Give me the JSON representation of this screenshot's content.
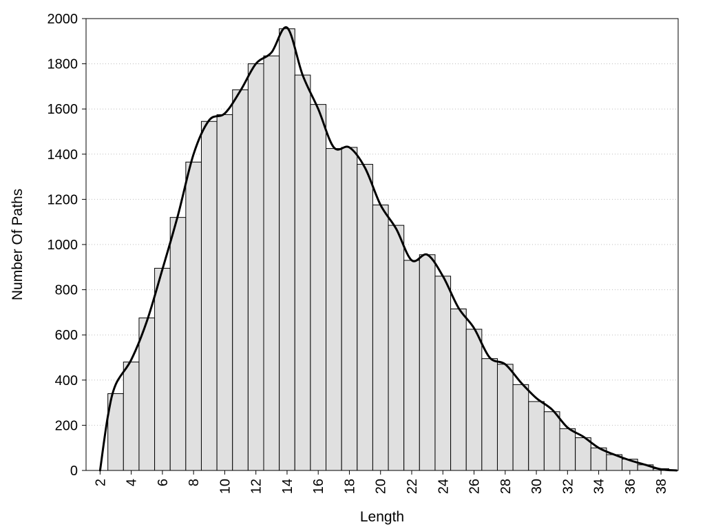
{
  "chart_data": {
    "type": "bar",
    "xlabel": "Length",
    "ylabel": "Number Of Paths",
    "xlim": [
      1.1,
      39.1
    ],
    "ylim": [
      0,
      2000
    ],
    "x_ticks": [
      2,
      4,
      6,
      8,
      10,
      12,
      14,
      16,
      18,
      20,
      22,
      24,
      26,
      28,
      30,
      32,
      34,
      36,
      38
    ],
    "y_ticks": [
      0,
      200,
      400,
      600,
      800,
      1000,
      1200,
      1400,
      1600,
      1800,
      2000
    ],
    "grid": "horizontal-dotted",
    "bar_fill": "#e0e0e0",
    "bar_stroke": "#000000",
    "line_color": "#000000",
    "bars": {
      "x": [
        3,
        4,
        5,
        6,
        7,
        8,
        9,
        10,
        11,
        12,
        13,
        14,
        15,
        16,
        17,
        18,
        19,
        20,
        21,
        22,
        23,
        24,
        25,
        26,
        27,
        28,
        29,
        30,
        31,
        32,
        33,
        34,
        35,
        36,
        37,
        38
      ],
      "values": [
        340,
        480,
        675,
        895,
        1120,
        1365,
        1545,
        1575,
        1685,
        1800,
        1835,
        1955,
        1750,
        1620,
        1425,
        1430,
        1355,
        1175,
        1085,
        930,
        955,
        860,
        715,
        625,
        495,
        470,
        380,
        305,
        260,
        185,
        145,
        100,
        70,
        50,
        25,
        8
      ]
    },
    "line": {
      "x": [
        2,
        2.5,
        3,
        4,
        5,
        6,
        7,
        8,
        9,
        10,
        11,
        12,
        13,
        14,
        15,
        16,
        17,
        18,
        19,
        20,
        21,
        22,
        23,
        24,
        25,
        26,
        27,
        28,
        29,
        30,
        31,
        32,
        33,
        34,
        35,
        36,
        37,
        38,
        39
      ],
      "values": [
        0,
        240,
        380,
        490,
        660,
        890,
        1130,
        1400,
        1550,
        1580,
        1680,
        1800,
        1850,
        1960,
        1750,
        1600,
        1430,
        1430,
        1340,
        1175,
        1070,
        930,
        955,
        860,
        720,
        630,
        500,
        470,
        390,
        320,
        270,
        190,
        150,
        100,
        70,
        45,
        25,
        5,
        0
      ]
    }
  }
}
